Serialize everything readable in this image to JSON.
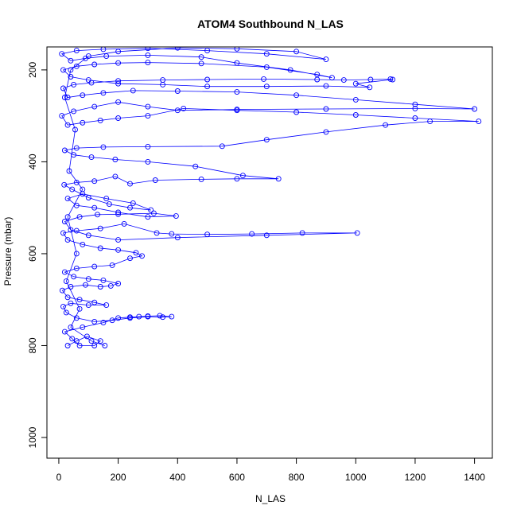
{
  "chart_data": {
    "type": "line",
    "title": "ATOM4 Southbound N_LAS",
    "xlabel": "N_LAS",
    "ylabel": "Pressure (mbar)",
    "xlim": [
      -40,
      1460
    ],
    "ylim": [
      1045,
      150
    ],
    "y_axis_inverted": true,
    "x_ticks": [
      0,
      200,
      400,
      600,
      800,
      1000,
      1200,
      1400
    ],
    "x_tick_labels": [
      "0",
      "200",
      "400",
      "600",
      "800",
      "1000",
      "1200",
      "1400"
    ],
    "y_ticks": [
      200,
      400,
      600,
      800,
      1000
    ],
    "y_tick_labels": [
      "200",
      "400",
      "600",
      "800",
      "1000"
    ],
    "grid": false,
    "legend": "none",
    "marker": "open-circle",
    "series_color": "#0000ff",
    "series": [
      {
        "points": [
          [
            30,
            800
          ],
          [
            60,
            790
          ],
          [
            95,
            780
          ],
          [
            140,
            790
          ],
          [
            120,
            800
          ],
          [
            70,
            800
          ],
          [
            45,
            785
          ],
          [
            20,
            770
          ],
          [
            80,
            760
          ],
          [
            150,
            750
          ],
          [
            200,
            740
          ],
          [
            240,
            738
          ],
          [
            270,
            737
          ],
          [
            300,
            736
          ],
          [
            340,
            735
          ],
          [
            380,
            737
          ],
          [
            350,
            738
          ],
          [
            300,
            737
          ],
          [
            240,
            740
          ],
          [
            180,
            745
          ],
          [
            120,
            748
          ],
          [
            60,
            740
          ],
          [
            25,
            728
          ],
          [
            15,
            715
          ],
          [
            40,
            708
          ],
          [
            100,
            712
          ],
          [
            160,
            712
          ],
          [
            120,
            706
          ],
          [
            70,
            700
          ],
          [
            30,
            695
          ],
          [
            12,
            680
          ],
          [
            40,
            672
          ],
          [
            90,
            668
          ],
          [
            140,
            672
          ],
          [
            175,
            670
          ],
          [
            200,
            665
          ],
          [
            150,
            658
          ],
          [
            100,
            655
          ],
          [
            50,
            650
          ],
          [
            20,
            640
          ],
          [
            60,
            632
          ],
          [
            120,
            628
          ],
          [
            180,
            625
          ],
          [
            240,
            610
          ],
          [
            280,
            605
          ],
          [
            260,
            598
          ],
          [
            200,
            592
          ],
          [
            140,
            588
          ],
          [
            80,
            580
          ],
          [
            30,
            570
          ],
          [
            15,
            555
          ],
          [
            60,
            550
          ],
          [
            140,
            545
          ],
          [
            220,
            535
          ],
          [
            330,
            555
          ],
          [
            380,
            557
          ],
          [
            500,
            558
          ],
          [
            650,
            557
          ],
          [
            820,
            555
          ],
          [
            1005,
            555
          ],
          [
            700,
            560
          ],
          [
            400,
            565
          ],
          [
            200,
            570
          ],
          [
            100,
            560
          ],
          [
            40,
            548
          ],
          [
            20,
            530
          ],
          [
            70,
            520
          ],
          [
            130,
            515
          ],
          [
            200,
            514
          ],
          [
            320,
            512
          ],
          [
            395,
            518
          ],
          [
            300,
            520
          ],
          [
            200,
            510
          ],
          [
            120,
            500
          ],
          [
            60,
            495
          ],
          [
            30,
            480
          ],
          [
            80,
            470
          ],
          [
            160,
            480
          ],
          [
            250,
            490
          ],
          [
            310,
            505
          ],
          [
            240,
            500
          ],
          [
            170,
            492
          ],
          [
            100,
            478
          ],
          [
            45,
            460
          ],
          [
            18,
            450
          ],
          [
            60,
            445
          ],
          [
            120,
            442
          ],
          [
            190,
            432
          ],
          [
            240,
            448
          ],
          [
            325,
            440
          ],
          [
            480,
            438
          ],
          [
            600,
            437
          ],
          [
            740,
            437
          ],
          [
            620,
            430
          ],
          [
            460,
            410
          ],
          [
            300,
            400
          ],
          [
            190,
            395
          ],
          [
            110,
            390
          ],
          [
            50,
            385
          ],
          [
            20,
            375
          ],
          [
            60,
            370
          ],
          [
            150,
            368
          ],
          [
            300,
            367
          ],
          [
            550,
            366
          ],
          [
            700,
            352
          ],
          [
            900,
            335
          ],
          [
            1100,
            320
          ],
          [
            1250,
            312
          ],
          [
            1414,
            312
          ],
          [
            1200,
            305
          ],
          [
            1000,
            298
          ],
          [
            800,
            292
          ],
          [
            600,
            288
          ],
          [
            420,
            284
          ],
          [
            300,
            300
          ],
          [
            200,
            305
          ],
          [
            140,
            310
          ],
          [
            80,
            315
          ],
          [
            30,
            320
          ],
          [
            10,
            300
          ],
          [
            50,
            290
          ],
          [
            120,
            280
          ],
          [
            200,
            270
          ],
          [
            300,
            280
          ],
          [
            400,
            288
          ],
          [
            600,
            286
          ],
          [
            900,
            285
          ],
          [
            1200,
            284
          ],
          [
            1400,
            285
          ],
          [
            1200,
            275
          ],
          [
            1000,
            265
          ],
          [
            800,
            255
          ],
          [
            600,
            248
          ],
          [
            400,
            246
          ],
          [
            250,
            245
          ],
          [
            150,
            250
          ],
          [
            80,
            255
          ],
          [
            30,
            260
          ],
          [
            15,
            240
          ],
          [
            50,
            232
          ],
          [
            110,
            228
          ],
          [
            200,
            224
          ],
          [
            350,
            222
          ],
          [
            500,
            221
          ],
          [
            690,
            220
          ],
          [
            870,
            221
          ],
          [
            960,
            222
          ],
          [
            1050,
            221
          ],
          [
            1117,
            220
          ],
          [
            1124,
            221
          ],
          [
            1000,
            230
          ],
          [
            1047,
            238
          ],
          [
            900,
            235
          ],
          [
            700,
            236
          ],
          [
            500,
            236
          ],
          [
            350,
            232
          ],
          [
            200,
            230
          ],
          [
            100,
            222
          ],
          [
            40,
            215
          ],
          [
            15,
            200
          ],
          [
            60,
            192
          ],
          [
            120,
            188
          ],
          [
            200,
            185
          ],
          [
            300,
            184
          ],
          [
            480,
            186
          ],
          [
            700,
            194
          ],
          [
            870,
            210
          ],
          [
            920,
            217
          ],
          [
            780,
            200
          ],
          [
            600,
            185
          ],
          [
            480,
            172
          ],
          [
            300,
            168
          ],
          [
            160,
            170
          ],
          [
            90,
            175
          ],
          [
            40,
            180
          ],
          [
            10,
            165
          ],
          [
            60,
            158
          ],
          [
            150,
            155
          ],
          [
            300,
            153
          ],
          [
            500,
            158
          ],
          [
            700,
            165
          ],
          [
            900,
            177
          ],
          [
            800,
            160
          ],
          [
            600,
            154
          ],
          [
            400,
            152
          ],
          [
            200,
            160
          ],
          [
            100,
            170
          ],
          [
            40,
            200
          ],
          [
            20,
            260
          ],
          [
            55,
            330
          ],
          [
            35,
            420
          ],
          [
            80,
            460
          ],
          [
            30,
            520
          ],
          [
            60,
            600
          ],
          [
            25,
            660
          ],
          [
            70,
            720
          ],
          [
            40,
            760
          ],
          [
            110,
            790
          ],
          [
            155,
            800
          ]
        ]
      }
    ]
  }
}
